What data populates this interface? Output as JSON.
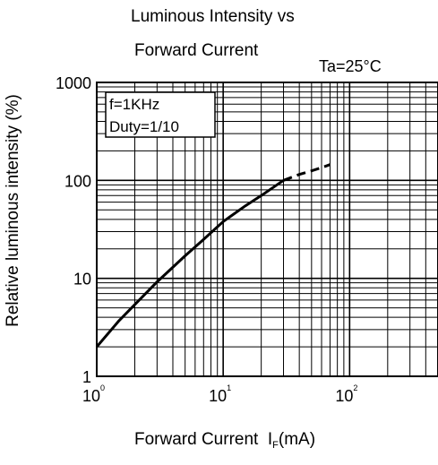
{
  "chart_data": {
    "type": "line",
    "title_line1": "Luminous Intensity vs",
    "title_line2": "Forward Current",
    "condition": "Ta=25°C",
    "ylabel": "Relative luminous intensity   (%)",
    "xlabel": "Forward Current",
    "xlabel_symbol": "I",
    "xlabel_subscript": "F",
    "xlabel_unit": "(mA)",
    "annotation_line1": "f=1KHz",
    "annotation_line2": "Duty=1/10",
    "xscale": "log",
    "yscale": "log",
    "xlim": [
      1,
      500
    ],
    "ylim": [
      1,
      1000
    ],
    "x_ticks": [
      {
        "value": 1,
        "base": "10",
        "exp": "0"
      },
      {
        "value": 10,
        "base": "10",
        "exp": "1"
      },
      {
        "value": 100,
        "base": "10",
        "exp": "2"
      }
    ],
    "y_ticks": [
      {
        "value": 1,
        "label": "1"
      },
      {
        "value": 10,
        "label": "10"
      },
      {
        "value": 100,
        "label": "100"
      },
      {
        "value": 1000,
        "label": "1000"
      }
    ],
    "grid": true,
    "series": [
      {
        "style": "solid",
        "x": [
          1,
          1.5,
          2,
          3,
          5,
          7,
          10,
          15,
          20,
          30
        ],
        "y": [
          2,
          3.7,
          5.4,
          9.2,
          17,
          25,
          38,
          55,
          70,
          100
        ]
      },
      {
        "style": "dashed",
        "x": [
          30,
          40,
          50,
          60,
          70
        ],
        "y": [
          100,
          115,
          125,
          135,
          145
        ]
      }
    ]
  }
}
